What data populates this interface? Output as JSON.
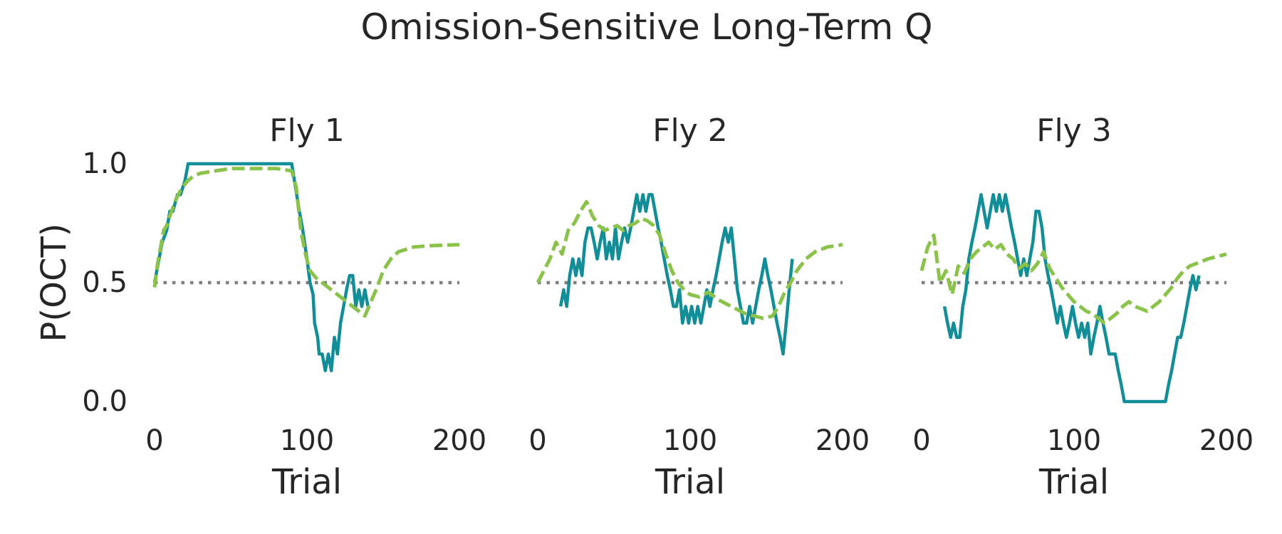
{
  "figure": {
    "title": "Omission-Sensitive Long-Term Q"
  },
  "colors": {
    "observed": "#118e97",
    "model": "#8bc34a",
    "chance": "#7f7f7f"
  },
  "chart_data": [
    {
      "type": "line",
      "title": "Fly 1",
      "xlabel": "Trial",
      "ylabel": "P(OCT)",
      "xlim": [
        0,
        200
      ],
      "ylim": [
        0,
        1
      ],
      "xticks": [
        "0",
        "100",
        "200"
      ],
      "yticks": [
        "0.0",
        "0.5",
        "1.0"
      ],
      "grid": false,
      "reference_line": {
        "y": 0.5,
        "x": [
          0,
          200
        ],
        "style": "dotted"
      },
      "series": [
        {
          "role": "observed",
          "style": "solid",
          "x": [
            0,
            5,
            8,
            10,
            12,
            15,
            17,
            20,
            22,
            25,
            30,
            40,
            50,
            60,
            70,
            80,
            90,
            95,
            97,
            100,
            102,
            104,
            105,
            107,
            108,
            110,
            112,
            114,
            116,
            118,
            120,
            122,
            124,
            126,
            128,
            130,
            132,
            134,
            136,
            138,
            140
          ],
          "y": [
            0.5,
            0.67,
            0.72,
            0.8,
            0.8,
            0.87,
            0.87,
            0.93,
            1.0,
            1.0,
            1.0,
            1.0,
            1.0,
            1.0,
            1.0,
            1.0,
            1.0,
            0.8,
            0.73,
            0.6,
            0.5,
            0.45,
            0.33,
            0.27,
            0.2,
            0.2,
            0.13,
            0.2,
            0.13,
            0.27,
            0.2,
            0.33,
            0.4,
            0.47,
            0.53,
            0.53,
            0.4,
            0.47,
            0.4,
            0.47,
            0.4
          ]
        },
        {
          "role": "model",
          "style": "dashed",
          "x": [
            0,
            2,
            4,
            6,
            8,
            10,
            14,
            18,
            22,
            26,
            30,
            40,
            50,
            60,
            70,
            80,
            90,
            93,
            96,
            99,
            102,
            106,
            110,
            114,
            118,
            122,
            126,
            130,
            134,
            138,
            142,
            146,
            150,
            155,
            160,
            170,
            180,
            200
          ],
          "y": [
            0.48,
            0.58,
            0.65,
            0.72,
            0.74,
            0.78,
            0.85,
            0.9,
            0.93,
            0.95,
            0.96,
            0.97,
            0.98,
            0.98,
            0.98,
            0.98,
            0.97,
            0.9,
            0.72,
            0.62,
            0.55,
            0.52,
            0.5,
            0.48,
            0.46,
            0.44,
            0.42,
            0.4,
            0.38,
            0.36,
            0.42,
            0.48,
            0.55,
            0.6,
            0.63,
            0.65,
            0.655,
            0.66
          ]
        }
      ]
    },
    {
      "type": "line",
      "title": "Fly 2",
      "xlabel": "Trial",
      "ylabel": "",
      "xlim": [
        0,
        200
      ],
      "ylim": [
        0,
        1
      ],
      "xticks": [
        "0",
        "100",
        "200"
      ],
      "yticks": [],
      "grid": false,
      "reference_line": {
        "y": 0.5,
        "x": [
          0,
          200
        ],
        "style": "dotted"
      },
      "series": [
        {
          "role": "observed",
          "style": "solid",
          "x": [
            15,
            17,
            19,
            21,
            23,
            25,
            27,
            29,
            31,
            33,
            35,
            37,
            39,
            41,
            43,
            45,
            47,
            49,
            51,
            53,
            55,
            57,
            59,
            61,
            63,
            65,
            67,
            69,
            71,
            73,
            75,
            77,
            79,
            81,
            83,
            85,
            87,
            89,
            91,
            93,
            95,
            97,
            99,
            101,
            103,
            105,
            107,
            109,
            111,
            113,
            115,
            117,
            119,
            121,
            123,
            125,
            127,
            129,
            131,
            133,
            135,
            137,
            139,
            141,
            143,
            145,
            147,
            149,
            151,
            153,
            155,
            157,
            159,
            161,
            163,
            165,
            167
          ],
          "y": [
            0.4,
            0.47,
            0.4,
            0.53,
            0.6,
            0.53,
            0.6,
            0.53,
            0.67,
            0.73,
            0.73,
            0.67,
            0.6,
            0.67,
            0.73,
            0.6,
            0.67,
            0.6,
            0.73,
            0.6,
            0.67,
            0.73,
            0.67,
            0.73,
            0.8,
            0.87,
            0.8,
            0.87,
            0.8,
            0.87,
            0.87,
            0.8,
            0.73,
            0.67,
            0.6,
            0.53,
            0.47,
            0.4,
            0.4,
            0.47,
            0.33,
            0.4,
            0.33,
            0.4,
            0.33,
            0.4,
            0.33,
            0.4,
            0.47,
            0.4,
            0.47,
            0.53,
            0.6,
            0.67,
            0.73,
            0.67,
            0.73,
            0.6,
            0.47,
            0.4,
            0.33,
            0.33,
            0.4,
            0.33,
            0.4,
            0.47,
            0.53,
            0.6,
            0.53,
            0.47,
            0.4,
            0.33,
            0.27,
            0.2,
            0.33,
            0.47,
            0.6
          ]
        },
        {
          "role": "model",
          "style": "dashed",
          "x": [
            0,
            4,
            8,
            12,
            16,
            20,
            24,
            28,
            32,
            36,
            40,
            44,
            48,
            52,
            56,
            60,
            64,
            68,
            72,
            76,
            80,
            84,
            88,
            92,
            96,
            100,
            106,
            112,
            118,
            124,
            130,
            136,
            142,
            148,
            154,
            158,
            162,
            166,
            170,
            176,
            182,
            190,
            200
          ],
          "y": [
            0.5,
            0.55,
            0.6,
            0.67,
            0.62,
            0.72,
            0.75,
            0.8,
            0.84,
            0.78,
            0.74,
            0.72,
            0.73,
            0.74,
            0.72,
            0.74,
            0.75,
            0.77,
            0.76,
            0.74,
            0.7,
            0.62,
            0.55,
            0.5,
            0.47,
            0.45,
            0.44,
            0.46,
            0.43,
            0.41,
            0.39,
            0.37,
            0.36,
            0.35,
            0.36,
            0.4,
            0.46,
            0.5,
            0.55,
            0.6,
            0.63,
            0.65,
            0.66
          ]
        }
      ]
    },
    {
      "type": "line",
      "title": "Fly 3",
      "xlabel": "Trial",
      "ylabel": "",
      "xlim": [
        0,
        200
      ],
      "ylim": [
        0,
        1
      ],
      "xticks": [
        "0",
        "100",
        "200"
      ],
      "yticks": [],
      "grid": false,
      "reference_line": {
        "y": 0.5,
        "x": [
          0,
          200
        ],
        "style": "dotted"
      },
      "series": [
        {
          "role": "observed",
          "style": "solid",
          "x": [
            15,
            17,
            19,
            21,
            23,
            25,
            27,
            29,
            31,
            33,
            35,
            37,
            39,
            41,
            43,
            45,
            47,
            49,
            51,
            53,
            55,
            57,
            59,
            61,
            63,
            65,
            67,
            69,
            71,
            73,
            75,
            77,
            79,
            81,
            83,
            85,
            87,
            89,
            91,
            93,
            95,
            97,
            99,
            101,
            103,
            105,
            107,
            109,
            111,
            113,
            115,
            117,
            119,
            121,
            123,
            125,
            127,
            129,
            131,
            133,
            135,
            137,
            139,
            141,
            143,
            145,
            150,
            155,
            160,
            162,
            164,
            166,
            168,
            170,
            172,
            174,
            176,
            178,
            180,
            182
          ],
          "y": [
            0.4,
            0.33,
            0.27,
            0.33,
            0.27,
            0.27,
            0.4,
            0.47,
            0.6,
            0.67,
            0.73,
            0.8,
            0.87,
            0.8,
            0.73,
            0.8,
            0.87,
            0.8,
            0.87,
            0.8,
            0.87,
            0.8,
            0.73,
            0.67,
            0.6,
            0.53,
            0.6,
            0.53,
            0.6,
            0.67,
            0.8,
            0.8,
            0.73,
            0.6,
            0.53,
            0.47,
            0.4,
            0.33,
            0.4,
            0.33,
            0.27,
            0.33,
            0.4,
            0.33,
            0.27,
            0.33,
            0.27,
            0.33,
            0.2,
            0.27,
            0.33,
            0.4,
            0.33,
            0.27,
            0.2,
            0.2,
            0.2,
            0.13,
            0.07,
            0.0,
            0.0,
            0.0,
            0.0,
            0.0,
            0.0,
            0.0,
            0.0,
            0.0,
            0.0,
            0.07,
            0.13,
            0.2,
            0.27,
            0.27,
            0.33,
            0.4,
            0.47,
            0.53,
            0.47,
            0.53
          ]
        },
        {
          "role": "model",
          "style": "dashed",
          "x": [
            0,
            4,
            8,
            10,
            12,
            16,
            20,
            24,
            28,
            32,
            36,
            40,
            44,
            48,
            52,
            56,
            60,
            64,
            68,
            72,
            76,
            80,
            84,
            88,
            92,
            96,
            100,
            104,
            108,
            112,
            116,
            120,
            124,
            128,
            132,
            136,
            140,
            144,
            148,
            152,
            156,
            160,
            164,
            168,
            172,
            176,
            180,
            188,
            200
          ],
          "y": [
            0.55,
            0.65,
            0.7,
            0.6,
            0.5,
            0.55,
            0.45,
            0.57,
            0.54,
            0.6,
            0.63,
            0.65,
            0.67,
            0.64,
            0.66,
            0.62,
            0.6,
            0.56,
            0.58,
            0.55,
            0.58,
            0.63,
            0.56,
            0.52,
            0.48,
            0.45,
            0.42,
            0.4,
            0.38,
            0.37,
            0.35,
            0.33,
            0.35,
            0.37,
            0.4,
            0.42,
            0.4,
            0.39,
            0.38,
            0.4,
            0.42,
            0.45,
            0.48,
            0.52,
            0.55,
            0.57,
            0.58,
            0.6,
            0.62
          ]
        }
      ]
    }
  ]
}
